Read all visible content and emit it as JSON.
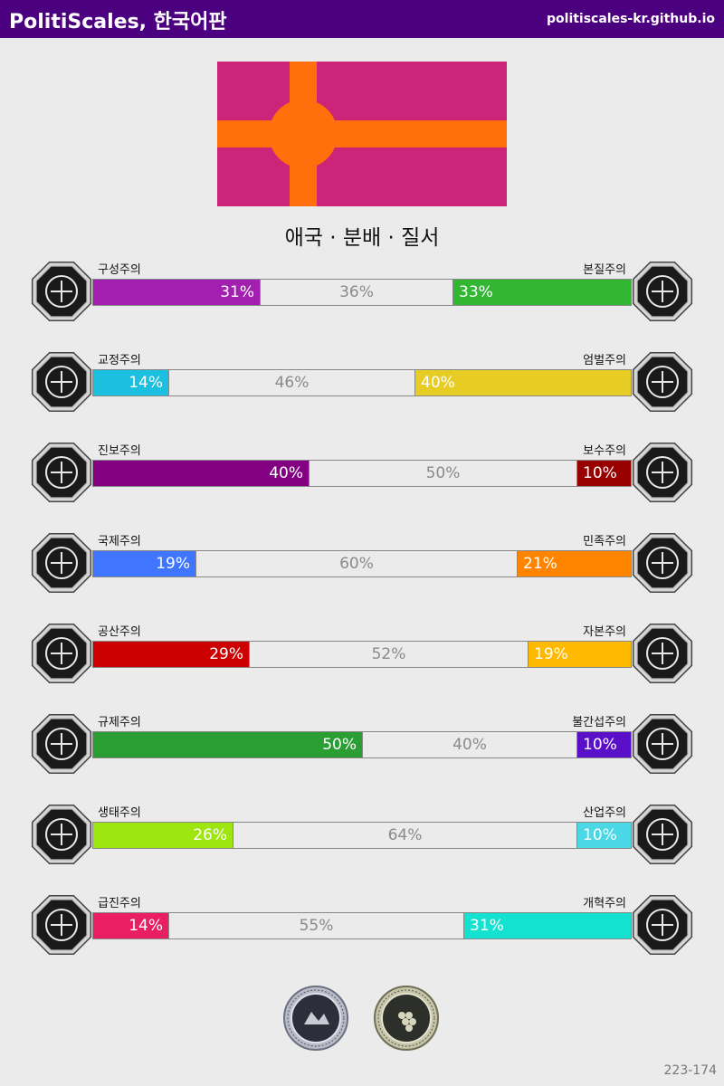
{
  "header": {
    "title": "PolitiScales, 한국어판",
    "site": "politiscales-kr.github.io"
  },
  "flag": {
    "background": "#cc2479",
    "cross": "#ff6f0b"
  },
  "ideology_title": "애국 · 분배 · 질서",
  "axes": [
    {
      "left_label": "구성주의",
      "right_label": "본질주의",
      "left_pct": 31,
      "mid_pct": 36,
      "right_pct": 33,
      "left_color": "#a31faf",
      "right_color": "#32b732",
      "left_text": "31%",
      "mid_text": "36%",
      "right_text": "33%",
      "left_icon": "eye-web-icon",
      "right_icon": "flower-icon"
    },
    {
      "left_label": "교정주의",
      "right_label": "엄벌주의",
      "left_pct": 14,
      "mid_pct": 46,
      "right_pct": 40,
      "left_color": "#1bbfe0",
      "right_color": "#e6cc23",
      "left_text": "14%",
      "mid_text": "46%",
      "right_text": "40%",
      "left_icon": "handshake-icon",
      "right_icon": "prison-bars-icon"
    },
    {
      "left_label": "진보주의",
      "right_label": "보수주의",
      "left_pct": 40,
      "mid_pct": 50,
      "right_pct": 10,
      "left_color": "#830083",
      "right_color": "#990000",
      "left_text": "40%",
      "mid_text": "50%",
      "right_text": "10%",
      "left_icon": "torch-icon",
      "right_icon": "quill-icon"
    },
    {
      "left_label": "국제주의",
      "right_label": "민족주의",
      "left_pct": 19,
      "mid_pct": 60,
      "right_pct": 21,
      "left_color": "#3f75ff",
      "right_color": "#ff8400",
      "left_text": "19%",
      "mid_text": "60%",
      "right_text": "21%",
      "left_icon": "globe-icon",
      "right_icon": "flag-icon"
    },
    {
      "left_label": "공산주의",
      "right_label": "자본주의",
      "left_pct": 29,
      "mid_pct": 52,
      "right_pct": 19,
      "left_color": "#cc0000",
      "right_color": "#ffb900",
      "left_text": "29%",
      "mid_text": "52%",
      "right_text": "19%",
      "left_icon": "hammer-sickle-icon",
      "right_icon": "money-bag-icon"
    },
    {
      "left_label": "규제주의",
      "right_label": "불간섭주의",
      "left_pct": 50,
      "mid_pct": 40,
      "right_pct": 10,
      "left_color": "#2a9e33",
      "right_color": "#5a0fc8",
      "left_text": "50%",
      "mid_text": "40%",
      "right_text": "10%",
      "left_icon": "ruler-icon",
      "right_icon": "butterfly-icon"
    },
    {
      "left_label": "생태주의",
      "right_label": "산업주의",
      "left_pct": 26,
      "mid_pct": 64,
      "right_pct": 10,
      "left_color": "#9ee60f",
      "right_color": "#4ad8e6",
      "left_text": "26%",
      "mid_text": "64%",
      "right_text": "10%",
      "left_icon": "sprout-icon",
      "right_icon": "gear-icon"
    },
    {
      "left_label": "급진주의",
      "right_label": "개혁주의",
      "left_pct": 14,
      "mid_pct": 55,
      "right_pct": 31,
      "left_color": "#ea1f63",
      "right_color": "#12e2cf",
      "left_text": "14%",
      "mid_text": "55%",
      "right_text": "31%",
      "left_icon": "fist-icon",
      "right_icon": "ballot-box-icon"
    }
  ],
  "footer_code": "223-174"
}
